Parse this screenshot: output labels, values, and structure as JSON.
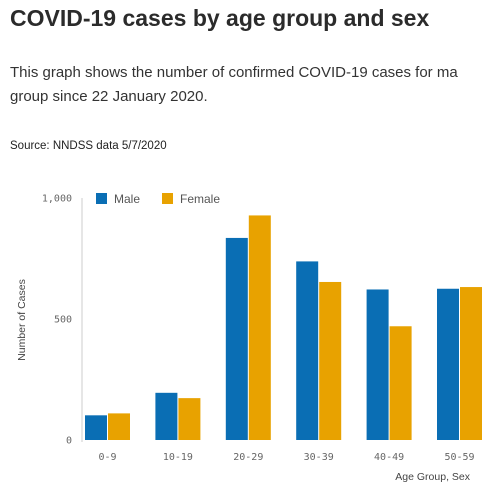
{
  "page": {
    "title": "COVID-19 cases by age group and sex",
    "description_line1": "This graph shows the number of confirmed COVID-19 cases for ma",
    "description_line2": "group since 22 January 2020.",
    "source": "Source: NNDSS data 5/7/2020"
  },
  "chart_data": {
    "type": "bar",
    "title": "",
    "xlabel": "Age Group, Sex",
    "ylabel": "Number of Cases",
    "ylim": [
      0,
      1000
    ],
    "yticks": [
      0,
      500,
      1000
    ],
    "ytick_labels": [
      "0",
      "500",
      "1,000"
    ],
    "grid": false,
    "legend_position": "top-left",
    "categories": [
      "0-9",
      "10-19",
      "20-29",
      "30-39",
      "40-49",
      "50-59"
    ],
    "series": [
      {
        "name": "Male",
        "color": "#0a6eb4",
        "values": [
          102,
          195,
          835,
          738,
          622,
          625
        ]
      },
      {
        "name": "Female",
        "color": "#e8a200",
        "values": [
          110,
          173,
          928,
          653,
          470,
          632
        ]
      }
    ]
  }
}
